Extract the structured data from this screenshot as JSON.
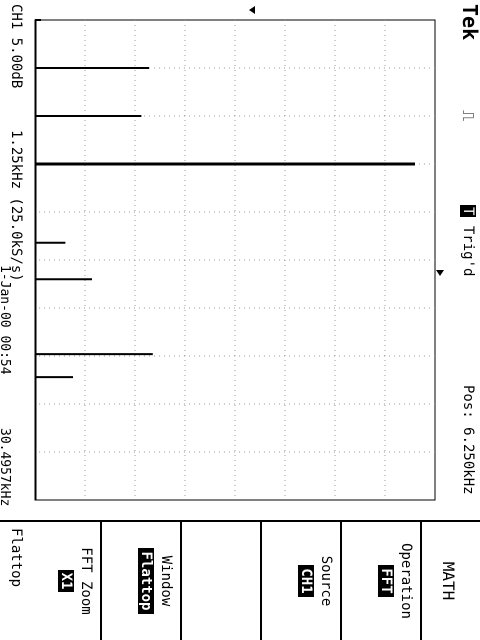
{
  "header": {
    "brand": "Tek",
    "trigger_symbol": "T",
    "trigger_status": "Trig'd",
    "position": "Pos: 6.250kHz"
  },
  "footer": {
    "ch1_scale": "CH1 5.00dB",
    "freq_scale": "1.25kHz (25.0kS/s)",
    "datetime": "1-Jan-00 00:54",
    "window_label": "Flattop",
    "cursor_freq": "30.4957kHz"
  },
  "menu": {
    "title": "MATH",
    "items": [
      {
        "label": "Operation",
        "value": "FFT"
      },
      {
        "label": "Source",
        "value": "CH1"
      },
      {
        "label": "",
        "value": ""
      },
      {
        "label": "Window",
        "value": "Flattop"
      },
      {
        "label": "FFT Zoom",
        "value": "X1"
      }
    ]
  },
  "chart_data": {
    "type": "bar",
    "xlabel": "",
    "ylabel": "",
    "x_units": "kHz",
    "x_per_div": 1.25,
    "db_per_div": 5.0,
    "spectrum_lines_kHz": [
      {
        "f": 0.0,
        "rel": 0.0
      },
      {
        "f": 1.25,
        "rel": 0.3
      },
      {
        "f": 2.5,
        "rel": 0.28
      },
      {
        "f": 3.75,
        "rel": 1.0
      },
      {
        "f": 5.8,
        "rel": 0.08
      },
      {
        "f": 6.75,
        "rel": 0.15
      },
      {
        "f": 8.7,
        "rel": 0.31
      },
      {
        "f": 9.3,
        "rel": 0.1
      }
    ],
    "grid": true
  }
}
